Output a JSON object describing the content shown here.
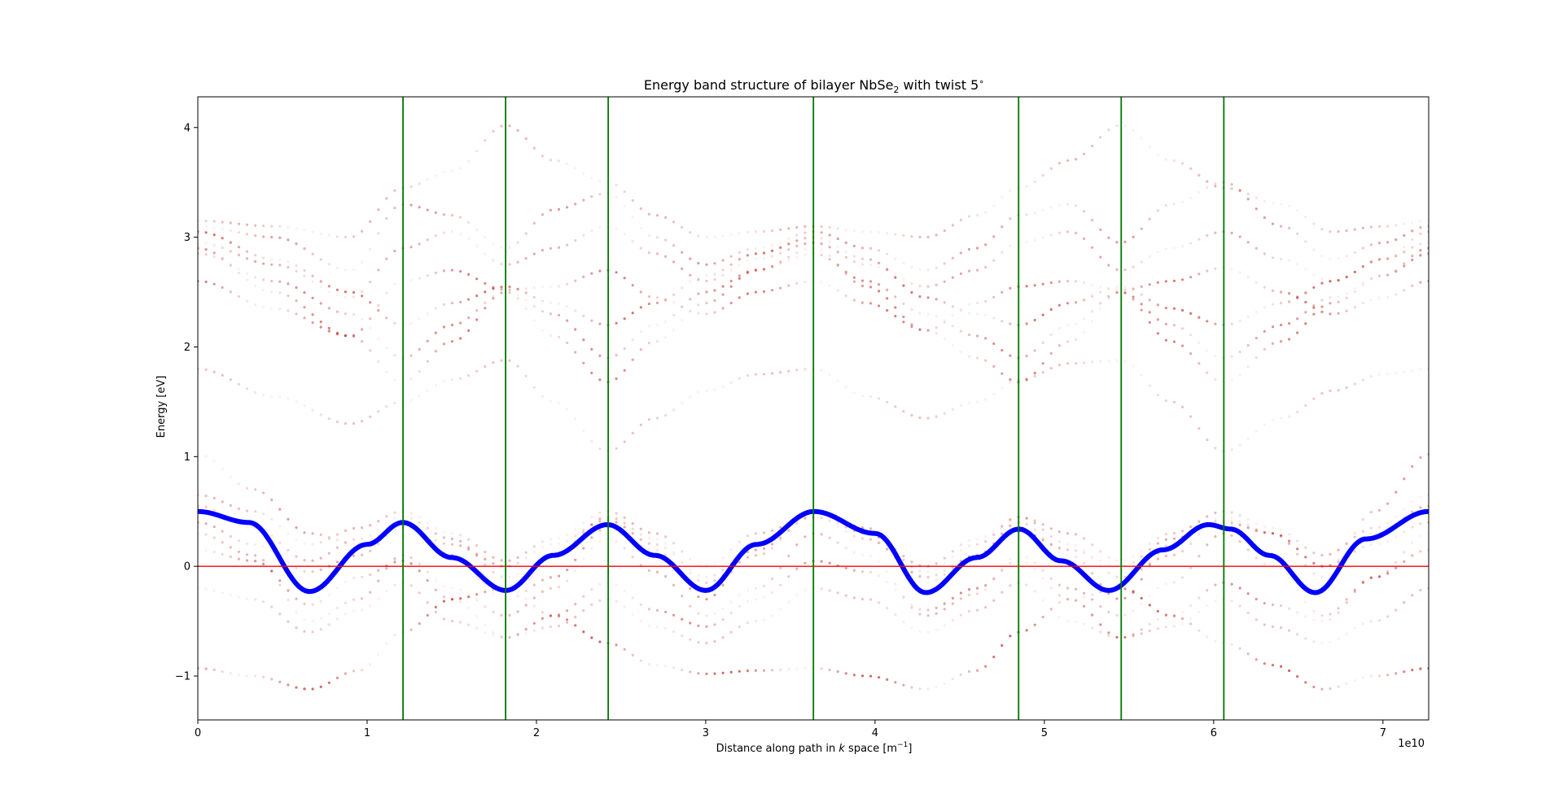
{
  "chart_data": {
    "type": "scatter",
    "title": {
      "prefix": "Energy band structure of bilayer NbSe",
      "subscript": "2",
      "suffix": " with twist 5",
      "superscript": "∘"
    },
    "xlabel": {
      "prefix": "Distance along path in ",
      "italic": "k",
      "middle": " space [m",
      "superscript": "−1",
      "suffix": "]"
    },
    "ylabel": "Energy [eV]",
    "x_offset_label": "1e10",
    "xlim": [
      0,
      7.27
    ],
    "ylim": [
      -1.4,
      4.28
    ],
    "x_ticks": [
      0,
      1,
      2,
      3,
      4,
      5,
      6,
      7
    ],
    "y_ticks": [
      -1,
      0,
      1,
      2,
      3,
      4
    ],
    "y_tick_labels": [
      "−1",
      "0",
      "1",
      "2",
      "3",
      "4"
    ],
    "grid": false,
    "legend": "none",
    "colors": {
      "bands": "#b40000",
      "highlight_band": "#0000ff",
      "fermi_line": "#ff0000",
      "symmetry_lines": "#007700"
    },
    "symmetry_points_x": [
      1.212,
      1.818,
      2.424,
      3.636,
      4.848,
      5.454,
      6.06
    ],
    "fermi_level_y": 0.0,
    "highlight_band": {
      "x": [
        0,
        0.3,
        0.66,
        1.0,
        1.21,
        1.5,
        1.82,
        2.1,
        2.42,
        2.7,
        3.0,
        3.3,
        3.64,
        4.0,
        4.3,
        4.6,
        4.85,
        5.1,
        5.38,
        5.7,
        5.97,
        6.1,
        6.33,
        6.6,
        6.9,
        7.27
      ],
      "y": [
        0.5,
        0.4,
        -0.23,
        0.2,
        0.4,
        0.08,
        -0.22,
        0.1,
        0.38,
        0.1,
        -0.22,
        0.2,
        0.5,
        0.3,
        -0.24,
        0.08,
        0.34,
        0.05,
        -0.22,
        0.15,
        0.38,
        0.34,
        0.1,
        -0.24,
        0.25,
        0.5
      ]
    },
    "band_groups": {
      "conduction": {
        "x": [
          0,
          0.45,
          0.9,
          1.21,
          1.5,
          1.82,
          2.1,
          2.42,
          2.7,
          3.0,
          3.3,
          3.64,
          3.95,
          4.3,
          4.6,
          4.85,
          5.15,
          5.45,
          5.75,
          6.06,
          6.4,
          6.7,
          7.0,
          7.27
        ],
        "series": [
          {
            "y": [
              3.05,
              2.8,
              2.5,
              2.2,
              2.4,
              2.55,
              2.4,
              2.2,
              2.4,
              2.65,
              2.85,
              3.0,
              2.8,
              2.45,
              2.3,
              2.2,
              2.4,
              2.55,
              2.35,
              2.2,
              2.4,
              2.6,
              2.8,
              3.05
            ],
            "w": 0.55
          },
          {
            "y": [
              2.9,
              2.5,
              2.1,
              1.68,
              2.05,
              2.5,
              2.1,
              1.68,
              2.05,
              2.4,
              2.7,
              2.9,
              2.55,
              2.15,
              1.9,
              1.68,
              2.05,
              2.5,
              2.05,
              1.68,
              2.05,
              2.4,
              2.65,
              2.9
            ],
            "w": 0.5
          },
          {
            "y": [
              2.85,
              2.6,
              2.3,
              1.9,
              2.2,
              2.5,
              2.3,
              1.9,
              2.2,
              2.5,
              2.7,
              2.85,
              2.6,
              2.3,
              2.1,
              1.9,
              2.2,
              2.5,
              2.2,
              1.9,
              2.2,
              2.45,
              2.65,
              2.85
            ],
            "w": 0.45
          },
          {
            "y": [
              3.1,
              3.0,
              2.7,
              3.3,
              3.2,
              2.9,
              3.25,
              3.4,
              3.0,
              2.75,
              2.9,
              3.05,
              2.9,
              2.7,
              2.9,
              3.2,
              3.3,
              2.95,
              3.3,
              3.5,
              3.1,
              2.8,
              2.95,
              3.1
            ],
            "w": 0.4
          },
          {
            "y": [
              2.95,
              2.75,
              2.45,
              2.9,
              3.05,
              2.75,
              2.9,
              3.1,
              2.85,
              2.6,
              2.8,
              2.95,
              2.75,
              2.55,
              2.7,
              2.95,
              3.05,
              2.7,
              2.9,
              3.05,
              2.8,
              2.6,
              2.8,
              2.95
            ],
            "w": 0.35
          },
          {
            "y": [
              3.15,
              3.1,
              3.0,
              3.45,
              3.6,
              4.02,
              3.7,
              3.5,
              3.2,
              3.0,
              3.05,
              3.1,
              3.05,
              3.0,
              3.2,
              3.45,
              3.7,
              4.02,
              3.7,
              3.45,
              3.3,
              3.05,
              3.1,
              3.15
            ],
            "w": 0.3
          },
          {
            "y": [
              1.8,
              1.55,
              1.3,
              1.5,
              1.7,
              1.88,
              1.5,
              1.05,
              1.35,
              1.6,
              1.75,
              1.8,
              1.55,
              1.35,
              1.5,
              1.7,
              1.85,
              1.88,
              1.5,
              1.05,
              1.35,
              1.6,
              1.75,
              1.8
            ],
            "w": 0.25
          },
          {
            "y": [
              2.6,
              2.35,
              2.1,
              2.6,
              2.7,
              2.52,
              2.55,
              2.7,
              2.45,
              2.3,
              2.5,
              2.6,
              2.4,
              2.15,
              2.4,
              2.55,
              2.6,
              2.52,
              2.6,
              2.72,
              2.5,
              2.3,
              2.45,
              2.6
            ],
            "w": 0.5
          }
        ]
      },
      "valence": {
        "x": [
          0,
          0.33,
          0.66,
          0.95,
          1.21,
          1.5,
          1.82,
          2.1,
          2.42,
          2.7,
          3.0,
          3.3,
          3.64,
          3.95,
          4.3,
          4.6,
          4.85,
          5.15,
          5.45,
          5.75,
          6.06,
          6.35,
          6.65,
          6.95,
          7.27
        ],
        "series": [
          {
            "y": [
              -0.93,
              -1.0,
              -1.12,
              -0.95,
              -0.6,
              -0.3,
              -0.2,
              -0.45,
              -0.7,
              -0.9,
              -0.98,
              -0.95,
              -0.93,
              -1.0,
              -1.12,
              -0.95,
              -0.6,
              -0.3,
              -0.2,
              -0.45,
              -0.7,
              -0.9,
              -1.12,
              -1.0,
              -0.93
            ],
            "w": 0.6
          },
          {
            "y": [
              1.02,
              0.7,
              0.3,
              0.2,
              0.38,
              0.1,
              -0.3,
              -0.1,
              0.35,
              0.15,
              -0.3,
              0.2,
              0.5,
              0.35,
              -0.15,
              0.1,
              0.4,
              0.1,
              -0.3,
              0.2,
              0.4,
              0.3,
              -0.1,
              0.5,
              1.02
            ],
            "w": 0.4
          },
          {
            "y": [
              0.15,
              0.05,
              -0.35,
              -0.1,
              0.05,
              -0.3,
              -0.65,
              -0.45,
              -0.15,
              -0.4,
              -0.55,
              -0.3,
              0.05,
              -0.05,
              -0.4,
              -0.2,
              0.05,
              -0.3,
              -0.65,
              -0.45,
              -0.15,
              -0.35,
              -0.5,
              -0.1,
              0.15
            ],
            "w": 0.45
          },
          {
            "y": [
              0.3,
              0.1,
              -0.5,
              -0.3,
              0.1,
              -0.2,
              -0.45,
              -0.2,
              0.25,
              -0.05,
              -0.45,
              -0.2,
              0.3,
              0.1,
              -0.45,
              -0.25,
              0.1,
              -0.2,
              -0.45,
              -0.15,
              0.3,
              0.0,
              -0.45,
              -0.1,
              0.3
            ],
            "w": 0.3
          },
          {
            "y": [
              0.65,
              0.5,
              0.2,
              0.35,
              0.5,
              0.3,
              0.05,
              0.25,
              0.5,
              0.3,
              0.0,
              0.3,
              0.45,
              0.3,
              0.0,
              0.25,
              0.45,
              0.3,
              0.05,
              0.3,
              0.5,
              0.35,
              0.1,
              0.35,
              0.65
            ],
            "w": 0.3
          },
          {
            "y": [
              0.4,
              0.2,
              -0.05,
              0.1,
              0.35,
              0.2,
              0.0,
              0.2,
              0.42,
              0.2,
              -0.1,
              0.15,
              0.45,
              0.25,
              -0.1,
              0.1,
              0.32,
              0.15,
              0.0,
              0.25,
              0.42,
              0.3,
              0.0,
              0.2,
              0.4
            ],
            "w": 0.35
          },
          {
            "y": [
              0.55,
              0.35,
              0.05,
              0.25,
              0.45,
              0.25,
              -0.1,
              0.1,
              0.45,
              0.25,
              -0.15,
              0.1,
              0.48,
              0.3,
              -0.05,
              0.2,
              0.45,
              0.2,
              -0.1,
              0.1,
              0.45,
              0.3,
              0.0,
              0.3,
              0.55
            ],
            "w": 0.3
          },
          {
            "y": [
              -0.2,
              -0.3,
              -0.6,
              -0.4,
              -0.15,
              -0.5,
              -0.65,
              -0.55,
              -0.3,
              -0.55,
              -0.7,
              -0.5,
              -0.2,
              -0.3,
              -0.6,
              -0.4,
              -0.15,
              -0.5,
              -0.65,
              -0.55,
              -0.3,
              -0.55,
              -0.7,
              -0.5,
              -0.2
            ],
            "w": 0.25
          }
        ]
      }
    }
  }
}
